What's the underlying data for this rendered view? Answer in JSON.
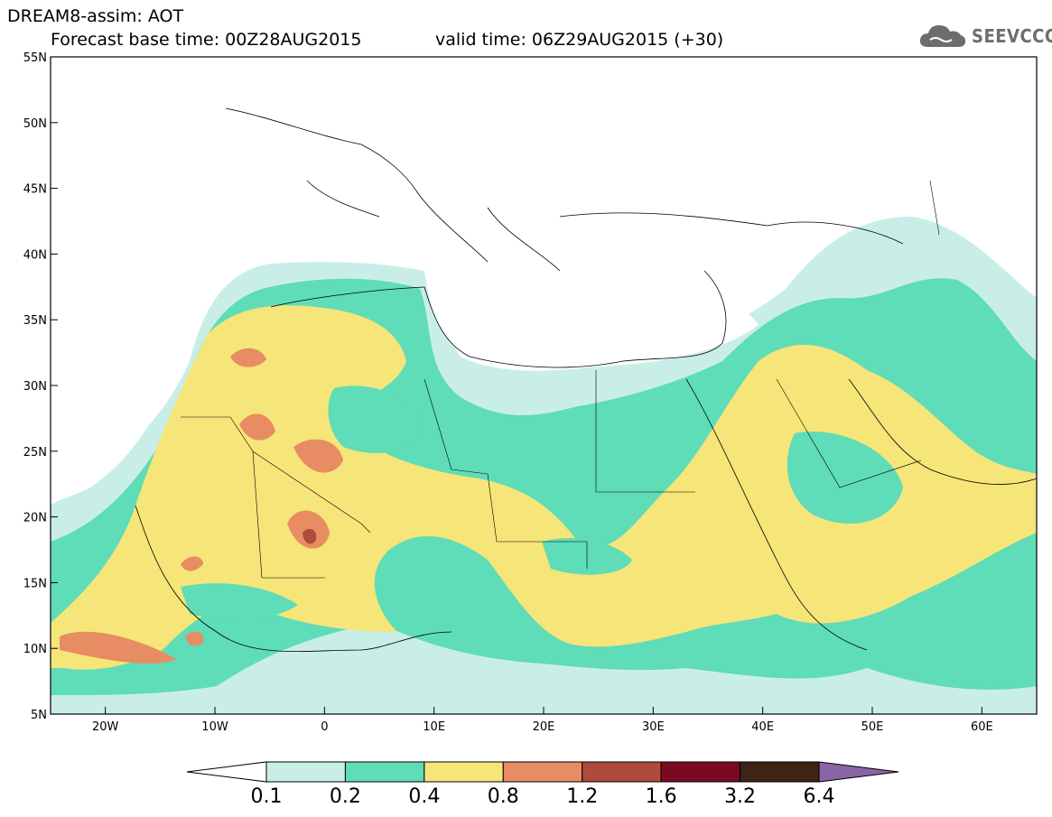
{
  "header": {
    "line1": "DREAM8-assim: AOT",
    "line2_left": "Forecast base time: 00Z28AUG2015",
    "line2_right": "valid time: 06Z29AUG2015 (+30)"
  },
  "logo": {
    "text": "SEEVCCC",
    "icon": "cloud-icon"
  },
  "axes": {
    "lat_ticks": [
      "55N",
      "50N",
      "45N",
      "40N",
      "35N",
      "30N",
      "25N",
      "20N",
      "15N",
      "10N",
      "5N"
    ],
    "lon_ticks": [
      "20W",
      "10W",
      "0",
      "10E",
      "20E",
      "30E",
      "40E",
      "50E",
      "60E"
    ],
    "lon_range": [
      -25,
      65
    ],
    "lat_range": [
      5,
      55
    ]
  },
  "colorbar": {
    "labels": [
      "0.1",
      "0.2",
      "0.4",
      "0.8",
      "1.2",
      "1.6",
      "3.2",
      "6.4"
    ],
    "colors": [
      "#ffffff",
      "#c9eee8",
      "#5fdcb8",
      "#f6e579",
      "#e88c63",
      "#b04a3c",
      "#7a0a22",
      "#3d2416",
      "#8a65a6"
    ]
  },
  "chart_data": {
    "type": "heatmap",
    "variable": "AOT",
    "levels": [
      0.1,
      0.2,
      0.4,
      0.8,
      1.2,
      1.6,
      3.2,
      6.4
    ],
    "colors": [
      "#c9eee8",
      "#5fdcb8",
      "#f6e579",
      "#e88c63",
      "#b04a3c",
      "#7a0a22",
      "#3d2416",
      "#8a65a6"
    ]
  }
}
